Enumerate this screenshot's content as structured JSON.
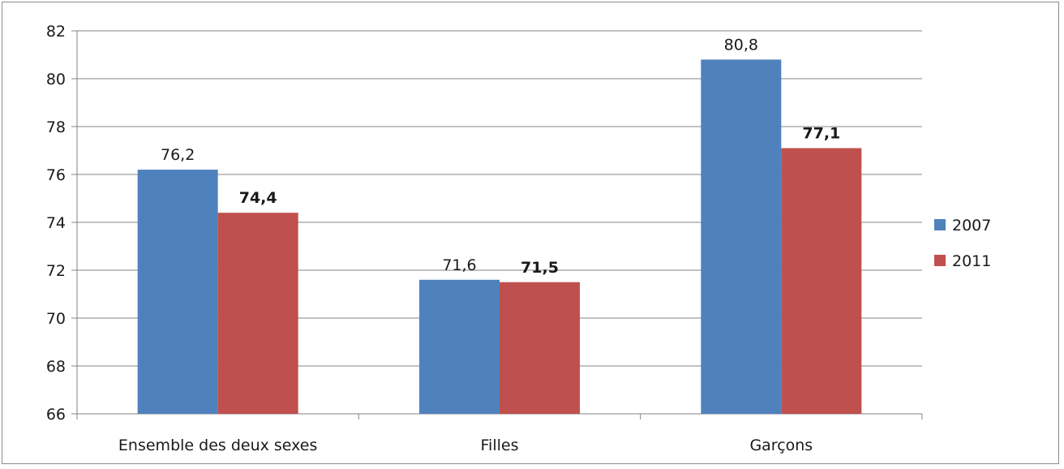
{
  "chart_data": {
    "type": "bar",
    "categories": [
      "Ensemble des deux sexes",
      "Filles",
      "Garçons"
    ],
    "series": [
      {
        "name": "2007",
        "values": [
          76.2,
          71.6,
          80.8
        ],
        "labels": [
          "76,2",
          "71,6",
          "80,8"
        ],
        "color": "#4f81bd",
        "label_bold": false
      },
      {
        "name": "2011",
        "values": [
          74.4,
          71.5,
          77.1
        ],
        "labels": [
          "74,4",
          "71,5",
          "77,1"
        ],
        "color": "#c0504d",
        "label_bold": true
      }
    ],
    "title": "",
    "xlabel": "",
    "ylabel": "",
    "ylim": [
      66,
      82
    ],
    "yticks": [
      "66",
      "68",
      "70",
      "72",
      "74",
      "76",
      "78",
      "80",
      "82"
    ],
    "grid": true,
    "legend": "right"
  }
}
